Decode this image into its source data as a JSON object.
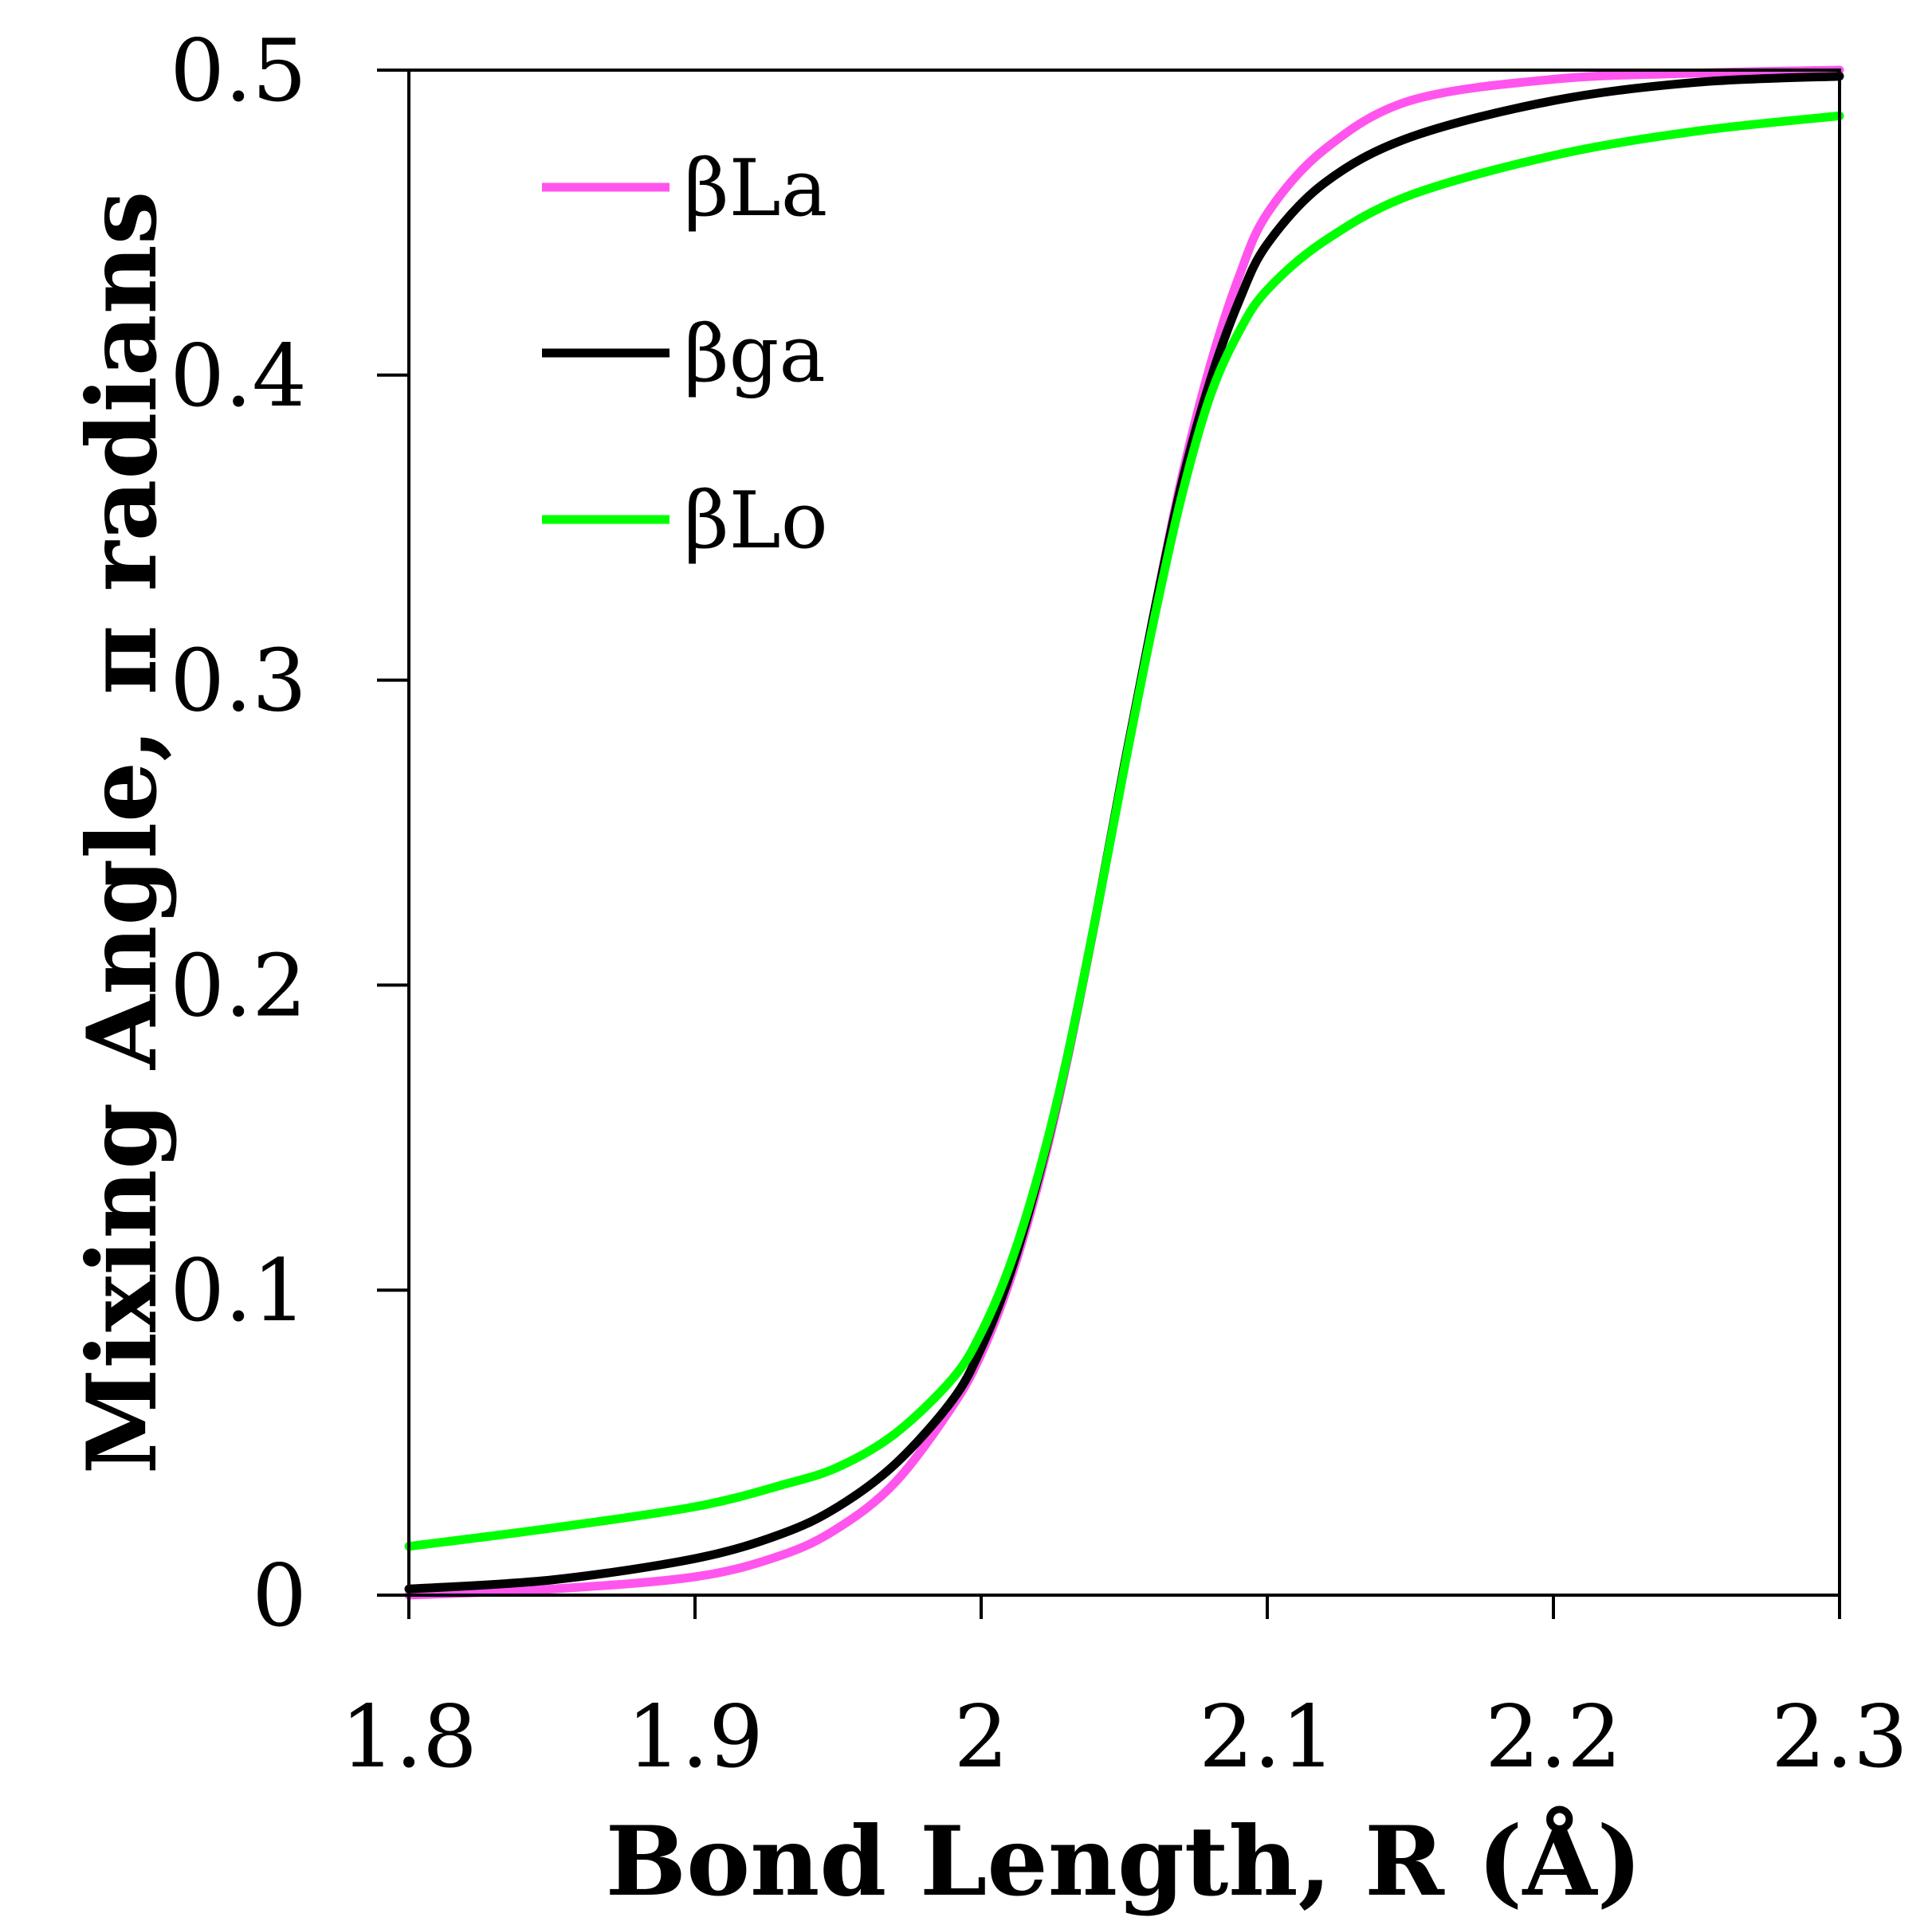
{
  "chart_data": {
    "type": "line",
    "xlabel": "Bond Length, R (Å)",
    "ylabel": "Mixing Angle, π radians",
    "xlim": [
      1.8,
      2.3
    ],
    "ylim": [
      0,
      0.5
    ],
    "x_ticks": [
      "1.8",
      "1.9",
      "2",
      "2.1",
      "2.2",
      "2.3"
    ],
    "y_ticks": [
      "0",
      "0.1",
      "0.2",
      "0.3",
      "0.4",
      "0.5"
    ],
    "grid": false,
    "legend_position": "top-left",
    "series": [
      {
        "name": "βLa",
        "color": "#ff55ee",
        "x": [
          1.8,
          1.85,
          1.9,
          1.93,
          1.95,
          1.97,
          1.99,
          2.0,
          2.01,
          2.02,
          2.03,
          2.04,
          2.05,
          2.06,
          2.07,
          2.08,
          2.09,
          2.1,
          2.12,
          2.15,
          2.2,
          2.25,
          2.3
        ],
        "values": [
          0.0,
          0.002,
          0.006,
          0.013,
          0.022,
          0.037,
          0.062,
          0.079,
          0.103,
          0.135,
          0.175,
          0.222,
          0.272,
          0.32,
          0.366,
          0.403,
          0.432,
          0.453,
          0.474,
          0.49,
          0.497,
          0.499,
          0.5
        ]
      },
      {
        "name": "βga",
        "color": "#000000",
        "x": [
          1.8,
          1.85,
          1.9,
          1.93,
          1.95,
          1.97,
          1.99,
          2.0,
          2.01,
          2.02,
          2.03,
          2.04,
          2.05,
          2.06,
          2.07,
          2.08,
          2.09,
          2.1,
          2.12,
          2.15,
          2.2,
          2.25,
          2.3
        ],
        "values": [
          0.002,
          0.005,
          0.012,
          0.02,
          0.029,
          0.043,
          0.064,
          0.081,
          0.105,
          0.137,
          0.176,
          0.222,
          0.272,
          0.32,
          0.364,
          0.398,
          0.424,
          0.443,
          0.463,
          0.478,
          0.49,
          0.496,
          0.498
        ]
      },
      {
        "name": "βLo",
        "color": "#00ff00",
        "x": [
          1.8,
          1.85,
          1.9,
          1.93,
          1.95,
          1.97,
          1.99,
          2.0,
          2.01,
          2.02,
          2.03,
          2.04,
          2.05,
          2.06,
          2.07,
          2.08,
          2.09,
          2.1,
          2.12,
          2.15,
          2.2,
          2.25,
          2.3
        ],
        "values": [
          0.016,
          0.022,
          0.029,
          0.036,
          0.042,
          0.053,
          0.071,
          0.086,
          0.108,
          0.138,
          0.176,
          0.222,
          0.271,
          0.318,
          0.36,
          0.393,
          0.414,
          0.428,
          0.444,
          0.459,
          0.472,
          0.48,
          0.485
        ]
      }
    ]
  }
}
